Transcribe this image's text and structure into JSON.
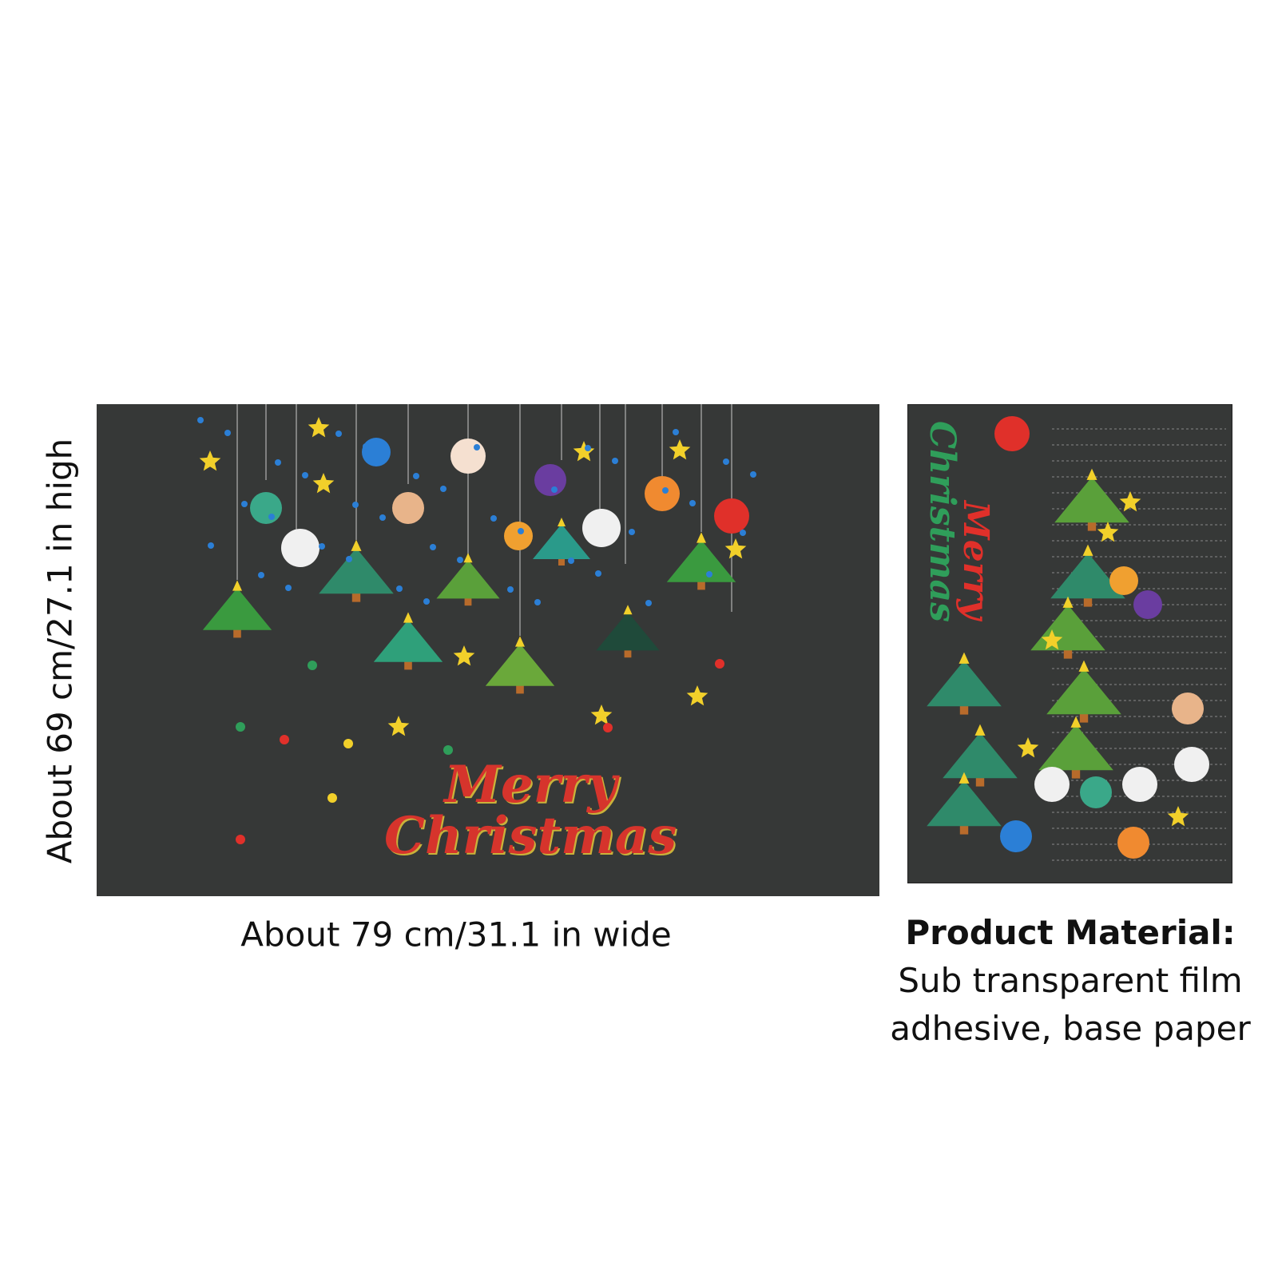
{
  "dimensions": {
    "height_label": "About 69 cm/27.1 in high",
    "width_label": "About 79 cm/31.1 in wide"
  },
  "material": {
    "title": "Product Material:",
    "line1": "Sub transparent film",
    "line2": "adhesive, base paper"
  },
  "artwork": {
    "greeting_line1": "Merry",
    "greeting_line2": "Christmas",
    "background_color": "#363837",
    "colors": {
      "tree": "#3a9a3f",
      "red": "#e0302a",
      "gold": "#f2d02a",
      "blue": "#2b7fd6",
      "pink": "#e9a3b8"
    }
  }
}
